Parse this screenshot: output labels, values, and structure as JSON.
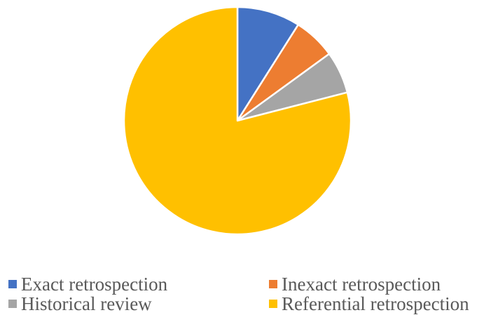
{
  "chart_data": {
    "type": "pie",
    "title": "",
    "legend_position": "bottom",
    "slices": [
      {
        "label": "Exact retrospection",
        "value": 9,
        "color": "#4472C4"
      },
      {
        "label": "Inexact retrospection",
        "value": 6,
        "color": "#ED7D31"
      },
      {
        "label": "Historical review",
        "value": 6,
        "color": "#A5A5A5"
      },
      {
        "label": "Referential retrospection",
        "value": 79,
        "color": "#FFC000"
      }
    ]
  }
}
